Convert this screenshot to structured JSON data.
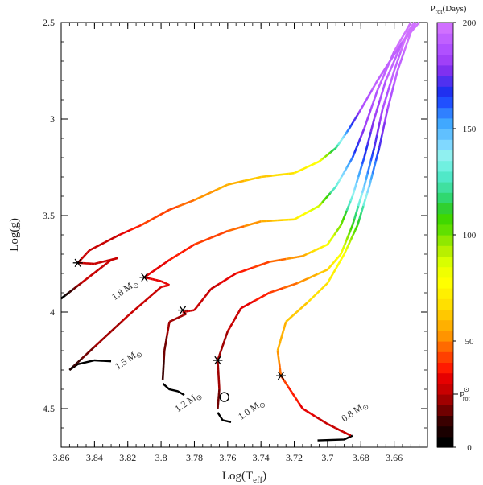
{
  "chart_data": {
    "type": "line",
    "title": "",
    "xlabel": "Log(T",
    "xlabel_sub": "eff",
    "xlabel_close": ")",
    "ylabel": "Log(g)",
    "xlim": [
      3.86,
      3.64
    ],
    "ylim": [
      2.5,
      4.7
    ],
    "x_ticks": [
      "3.86",
      "3.84",
      "3.82",
      "3.8",
      "3.78",
      "3.76",
      "3.74",
      "3.72",
      "3.7",
      "3.68",
      "3.66"
    ],
    "x_tick_values": [
      3.86,
      3.84,
      3.82,
      3.8,
      3.78,
      3.76,
      3.74,
      3.72,
      3.7,
      3.68,
      3.66
    ],
    "y_ticks": [
      "2.5",
      "3",
      "3.5",
      "4",
      "4.5"
    ],
    "y_tick_values": [
      2.5,
      3.0,
      3.5,
      4.0,
      4.5
    ],
    "colorbar": {
      "title": "P",
      "title_sub": "rot",
      "title_rest": "(Days)",
      "min": 0,
      "max": 200,
      "ticks": [
        "0",
        "50",
        "100",
        "150",
        "200"
      ],
      "tick_values": [
        0,
        50,
        100,
        150,
        200
      ],
      "sun_label": "P",
      "sun_label_sup": "⊙",
      "sun_label_sub": "rot",
      "sun_value": 25,
      "bands": [
        "#000000",
        "#1a0000",
        "#3a0000",
        "#700000",
        "#a00000",
        "#c80000",
        "#e60000",
        "#ff1a00",
        "#ff4000",
        "#ff6a00",
        "#ff9400",
        "#ffb000",
        "#ffc800",
        "#ffe000",
        "#fff000",
        "#ffff00",
        "#f0ff00",
        "#d8ff00",
        "#b8f000",
        "#90e800",
        "#60e000",
        "#40d800",
        "#30d030",
        "#30d870",
        "#40e0a0",
        "#50e8c8",
        "#70f0e0",
        "#90f0f0",
        "#80d8ff",
        "#60c0ff",
        "#40a8ff",
        "#3080ff",
        "#2050ff",
        "#2030f0",
        "#5030f0",
        "#8030f0",
        "#a040f8",
        "#b050ff",
        "#c060ff",
        "#d070ff"
      ]
    },
    "series": [
      {
        "name": "1.8 M☉",
        "label": "1.8 M",
        "points": [
          [
            3.86,
            3.93,
            0
          ],
          [
            3.845,
            3.83,
            28
          ],
          [
            3.83,
            3.73,
            28
          ],
          [
            3.826,
            3.72,
            28
          ],
          [
            3.84,
            3.75,
            28
          ],
          [
            3.85,
            3.745,
            28
          ],
          [
            3.843,
            3.68,
            28
          ],
          [
            3.825,
            3.6,
            30
          ],
          [
            3.812,
            3.55,
            40
          ],
          [
            3.795,
            3.47,
            43
          ],
          [
            3.78,
            3.42,
            50
          ],
          [
            3.76,
            3.34,
            58
          ],
          [
            3.74,
            3.3,
            62
          ],
          [
            3.72,
            3.28,
            70
          ],
          [
            3.705,
            3.22,
            80
          ],
          [
            3.695,
            3.15,
            120
          ],
          [
            3.687,
            3.05,
            160
          ],
          [
            3.68,
            2.95,
            185
          ],
          [
            3.67,
            2.8,
            192
          ],
          [
            3.655,
            2.6,
            195
          ],
          [
            3.645,
            2.5,
            200
          ]
        ],
        "zams": [
          [
            3.855,
            4.3
          ],
          [
            3.85,
            4.27
          ],
          [
            3.84,
            4.25
          ],
          [
            3.83,
            4.255
          ]
        ],
        "turnoff": [
          3.85,
          3.745
        ],
        "label_pos": [
          3.828,
          3.94,
          -35
        ]
      },
      {
        "name": "1.5 M☉",
        "label": "1.5 M",
        "points": [
          [
            3.855,
            4.3,
            8
          ],
          [
            3.84,
            4.18,
            20
          ],
          [
            3.82,
            4.02,
            26
          ],
          [
            3.8,
            3.87,
            30
          ],
          [
            3.795,
            3.86,
            30
          ],
          [
            3.8,
            3.84,
            30
          ],
          [
            3.81,
            3.82,
            30
          ],
          [
            3.795,
            3.73,
            35
          ],
          [
            3.78,
            3.65,
            40
          ],
          [
            3.76,
            3.58,
            45
          ],
          [
            3.74,
            3.53,
            55
          ],
          [
            3.72,
            3.52,
            70
          ],
          [
            3.705,
            3.45,
            90
          ],
          [
            3.695,
            3.35,
            130
          ],
          [
            3.685,
            3.2,
            160
          ],
          [
            3.678,
            3.05,
            180
          ],
          [
            3.67,
            2.85,
            190
          ],
          [
            3.66,
            2.65,
            195
          ],
          [
            3.65,
            2.5,
            200
          ]
        ],
        "zams": [
          [
            3.799,
            4.37
          ],
          [
            3.795,
            4.4
          ],
          [
            3.79,
            4.41
          ],
          [
            3.786,
            4.43
          ]
        ],
        "turnoff": [
          3.81,
          3.82
        ],
        "label_pos": [
          3.826,
          4.3,
          -35
        ]
      },
      {
        "name": "1.2 M☉",
        "label": "1.2 M",
        "points": [
          [
            3.799,
            4.35,
            10
          ],
          [
            3.798,
            4.2,
            18
          ],
          [
            3.795,
            4.05,
            22
          ],
          [
            3.785,
            4.01,
            25
          ],
          [
            3.787,
            4.0,
            25
          ],
          [
            3.78,
            3.99,
            25
          ],
          [
            3.77,
            3.88,
            28
          ],
          [
            3.755,
            3.8,
            35
          ],
          [
            3.735,
            3.74,
            45
          ],
          [
            3.715,
            3.71,
            55
          ],
          [
            3.7,
            3.65,
            80
          ],
          [
            3.692,
            3.55,
            100
          ],
          [
            3.685,
            3.4,
            135
          ],
          [
            3.678,
            3.2,
            165
          ],
          [
            3.672,
            3.0,
            180
          ],
          [
            3.665,
            2.8,
            190
          ],
          [
            3.655,
            2.6,
            195
          ],
          [
            3.647,
            2.5,
            200
          ]
        ],
        "zams": [
          [
            3.766,
            4.52
          ],
          [
            3.763,
            4.56
          ],
          [
            3.758,
            4.57
          ]
        ],
        "turnoff": [
          3.787,
          3.99
        ],
        "label_pos": [
          3.79,
          4.52,
          -35
        ]
      },
      {
        "name": "1.0 M☉",
        "label": "1.0 M",
        "points": [
          [
            3.766,
            4.5,
            15
          ],
          [
            3.765,
            4.4,
            20
          ],
          [
            3.766,
            4.25,
            22
          ],
          [
            3.76,
            4.1,
            25
          ],
          [
            3.752,
            3.98,
            30
          ],
          [
            3.735,
            3.9,
            40
          ],
          [
            3.718,
            3.85,
            50
          ],
          [
            3.7,
            3.78,
            65
          ],
          [
            3.692,
            3.7,
            80
          ],
          [
            3.685,
            3.55,
            110
          ],
          [
            3.678,
            3.35,
            145
          ],
          [
            3.672,
            3.15,
            170
          ],
          [
            3.667,
            2.95,
            185
          ],
          [
            3.66,
            2.75,
            192
          ],
          [
            3.652,
            2.55,
            198
          ],
          [
            3.648,
            2.5,
            200
          ]
        ],
        "zams": [
          [
            3.706,
            4.665
          ],
          [
            3.69,
            4.66
          ],
          [
            3.685,
            4.64
          ]
        ],
        "turnoff": [
          3.766,
          4.25
        ],
        "sun": [
          3.762,
          4.44
        ],
        "label_pos": [
          3.752,
          4.56,
          -35
        ]
      },
      {
        "name": "0.8 M☉",
        "label": "0.8 M",
        "points": [
          [
            3.686,
            4.64,
            25
          ],
          [
            3.7,
            4.58,
            28
          ],
          [
            3.715,
            4.5,
            32
          ],
          [
            3.728,
            4.33,
            45
          ],
          [
            3.73,
            4.2,
            55
          ],
          [
            3.725,
            4.05,
            60
          ],
          [
            3.712,
            3.95,
            65
          ],
          [
            3.7,
            3.85,
            70
          ],
          [
            3.69,
            3.7,
            80
          ],
          [
            3.682,
            3.55,
            110
          ],
          [
            3.675,
            3.35,
            145
          ],
          [
            3.669,
            3.15,
            170
          ],
          [
            3.664,
            2.95,
            185
          ],
          [
            3.658,
            2.75,
            192
          ],
          [
            3.65,
            2.55,
            198
          ],
          [
            3.647,
            2.5,
            200
          ]
        ],
        "zams": [],
        "turnoff": [
          3.728,
          4.33
        ],
        "label_pos": [
          3.69,
          4.57,
          -35
        ]
      }
    ]
  }
}
